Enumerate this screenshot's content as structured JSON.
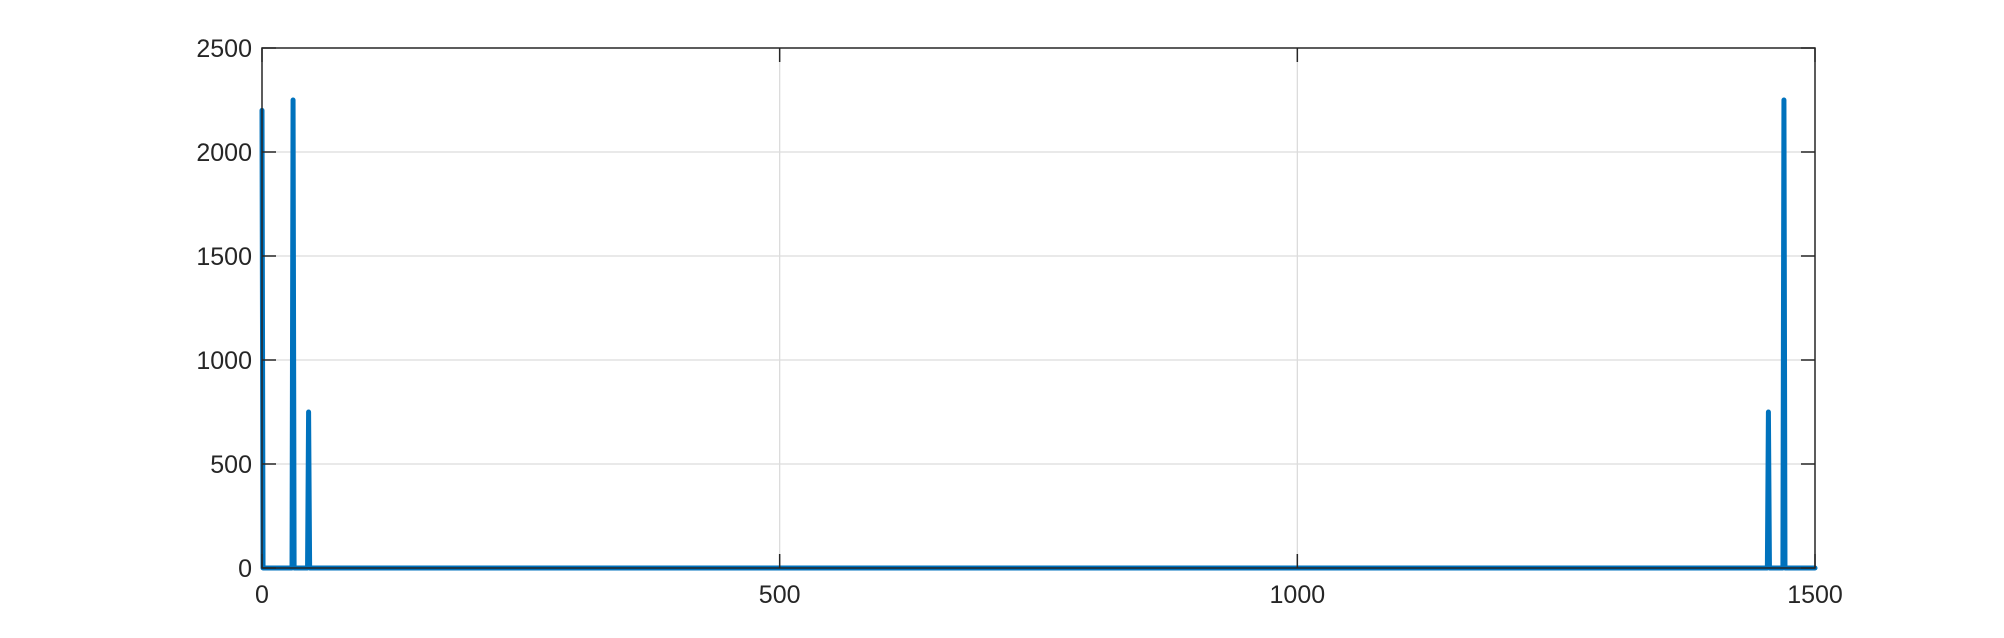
{
  "chart_data": {
    "type": "line",
    "title": "",
    "xlabel": "",
    "ylabel": "",
    "xlim": [
      0,
      1500
    ],
    "ylim": [
      0,
      2500
    ],
    "xticks": [
      0,
      500,
      1000,
      1500
    ],
    "xtick_labels": [
      "0",
      "500",
      "1000",
      "1500"
    ],
    "yticks": [
      0,
      500,
      1000,
      1500,
      2000,
      2500
    ],
    "ytick_labels": [
      "0",
      "500",
      "1000",
      "1500",
      "2000",
      "2500"
    ],
    "grid": true,
    "colors": {
      "line": "#0072BD",
      "grid": "#dcdcdc",
      "axes": "#262626"
    },
    "series": [
      {
        "x": [
          0,
          1,
          2,
          29,
          30,
          31,
          44,
          45,
          46,
          1454,
          1455,
          1456,
          1469,
          1470,
          1471,
          1500
        ],
        "y": [
          2200,
          0,
          0,
          0,
          2250,
          0,
          0,
          750,
          0,
          0,
          750,
          0,
          0,
          2250,
          0,
          0
        ]
      }
    ]
  }
}
